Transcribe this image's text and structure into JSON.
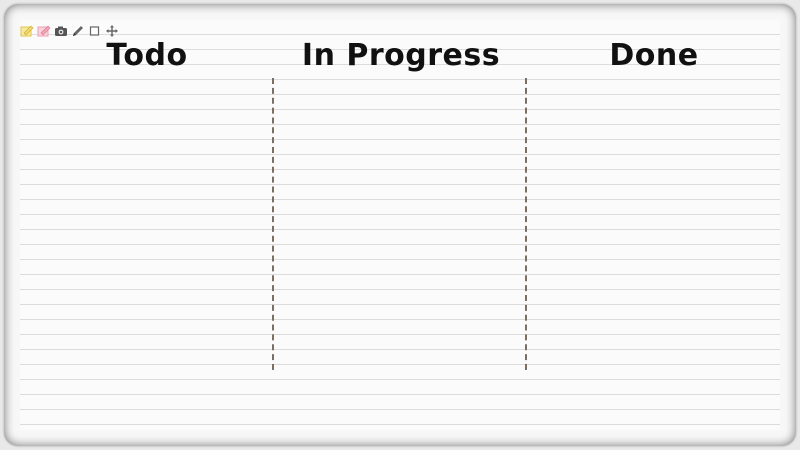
{
  "board": {
    "columns": [
      {
        "title": "Todo"
      },
      {
        "title": "In Progress"
      },
      {
        "title": "Done"
      }
    ]
  },
  "toolbar": {
    "tools": [
      {
        "icon": "yellow-sticky-note-icon",
        "color": "#f2d96b"
      },
      {
        "icon": "pink-sticky-note-icon",
        "color": "#f2a6b8"
      },
      {
        "icon": "camera-icon",
        "color": "#555555"
      },
      {
        "icon": "pencil-icon",
        "color": "#555555"
      },
      {
        "icon": "rectangle-icon",
        "color": "#555555"
      },
      {
        "icon": "move-arrows-icon",
        "color": "#555555"
      }
    ]
  },
  "colors": {
    "divider": "#7a6f62",
    "paper_line": "#dcdcdc",
    "title_text": "#111111"
  }
}
